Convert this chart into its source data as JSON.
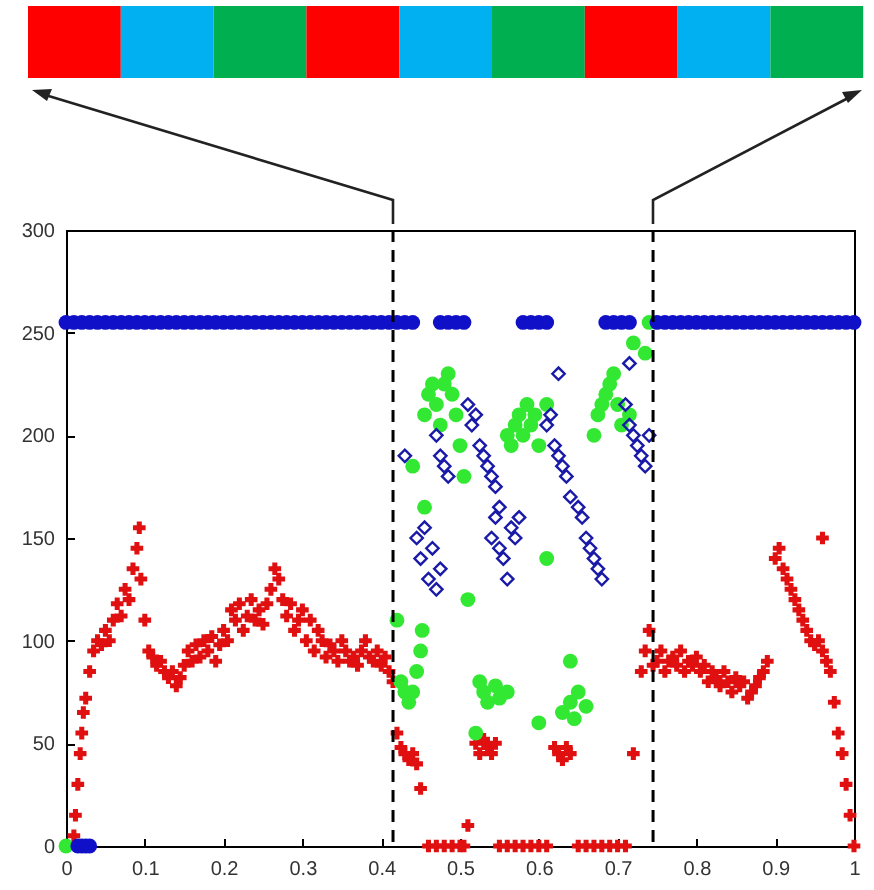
{
  "chart_data": {
    "type": "scatter",
    "xlim": [
      0,
      1
    ],
    "ylim": [
      0,
      300
    ],
    "xticks": [
      0,
      0.1,
      0.2,
      0.3,
      0.4,
      0.5,
      0.6,
      0.7,
      0.8,
      0.9,
      1
    ],
    "yticks": [
      0,
      50,
      100,
      150,
      200,
      250,
      300
    ],
    "grid": false,
    "ref_lines": [
      {
        "axis": "x",
        "value": 0.415,
        "color": "#000000",
        "line_style": "dashed"
      },
      {
        "axis": "x",
        "value": 0.745,
        "color": "#000000",
        "line_style": "dashed"
      }
    ],
    "series": [
      {
        "color": "#e01010",
        "marker": "cross",
        "x": [
          0.01,
          0.012,
          0.015,
          0.018,
          0.02,
          0.022,
          0.025,
          0.03,
          0.035,
          0.04,
          0.045,
          0.05,
          0.055,
          0.06,
          0.065,
          0.07,
          0.075,
          0.08,
          0.085,
          0.09,
          0.093,
          0.095,
          0.1,
          0.105,
          0.11,
          0.115,
          0.12,
          0.125,
          0.13,
          0.135,
          0.14,
          0.145,
          0.15,
          0.155,
          0.16,
          0.165,
          0.17,
          0.175,
          0.18,
          0.185,
          0.19,
          0.195,
          0.2,
          0.205,
          0.21,
          0.215,
          0.22,
          0.225,
          0.23,
          0.235,
          0.24,
          0.245,
          0.25,
          0.255,
          0.26,
          0.265,
          0.27,
          0.275,
          0.28,
          0.285,
          0.29,
          0.295,
          0.3,
          0.305,
          0.31,
          0.315,
          0.32,
          0.325,
          0.33,
          0.335,
          0.34,
          0.345,
          0.35,
          0.355,
          0.36,
          0.365,
          0.37,
          0.375,
          0.38,
          0.385,
          0.39,
          0.395,
          0.4,
          0.405,
          0.41,
          0.415,
          0.42,
          0.425,
          0.43,
          0.435,
          0.44,
          0.445,
          0.45,
          0.46,
          0.47,
          0.48,
          0.49,
          0.5,
          0.505,
          0.51,
          0.52,
          0.525,
          0.53,
          0.535,
          0.54,
          0.545,
          0.55,
          0.56,
          0.57,
          0.58,
          0.59,
          0.6,
          0.61,
          0.62,
          0.625,
          0.63,
          0.635,
          0.64,
          0.65,
          0.66,
          0.67,
          0.68,
          0.69,
          0.7,
          0.71,
          0.72,
          0.73,
          0.735,
          0.74,
          0.745,
          0.75,
          0.755,
          0.76,
          0.765,
          0.77,
          0.775,
          0.78,
          0.785,
          0.79,
          0.795,
          0.8,
          0.805,
          0.81,
          0.815,
          0.82,
          0.825,
          0.83,
          0.835,
          0.84,
          0.845,
          0.85,
          0.855,
          0.86,
          0.865,
          0.87,
          0.875,
          0.88,
          0.885,
          0.89,
          0.9,
          0.905,
          0.91,
          0.915,
          0.92,
          0.925,
          0.93,
          0.935,
          0.94,
          0.945,
          0.95,
          0.955,
          0.96,
          0.965,
          0.97,
          0.975,
          0.98,
          0.985,
          0.99,
          0.995,
          1,
          0.96
        ],
        "values": [
          5,
          15,
          30,
          45,
          55,
          65,
          72,
          85,
          95,
          100,
          98,
          105,
          100,
          110,
          118,
          112,
          125,
          120,
          135,
          145,
          155,
          130,
          110,
          95,
          92,
          88,
          90,
          85,
          82,
          85,
          78,
          82,
          88,
          95,
          90,
          98,
          92,
          100,
          95,
          102,
          90,
          98,
          105,
          100,
          115,
          110,
          118,
          105,
          112,
          120,
          110,
          115,
          108,
          118,
          125,
          135,
          130,
          120,
          112,
          118,
          105,
          110,
          115,
          100,
          110,
          95,
          105,
          100,
          92,
          98,
          95,
          90,
          100,
          95,
          90,
          92,
          88,
          95,
          100,
          92,
          90,
          95,
          88,
          92,
          85,
          80,
          55,
          48,
          45,
          42,
          45,
          40,
          28,
          0,
          0,
          0,
          0,
          0,
          0,
          10,
          50,
          45,
          52,
          48,
          45,
          50,
          0,
          0,
          0,
          0,
          0,
          0,
          0,
          48,
          45,
          42,
          48,
          45,
          0,
          0,
          0,
          0,
          0,
          0,
          0,
          45,
          85,
          95,
          105,
          88,
          90,
          95,
          85,
          90,
          92,
          88,
          95,
          85,
          90,
          88,
          92,
          85,
          88,
          80,
          85,
          82,
          78,
          85,
          80,
          75,
          82,
          78,
          80,
          72,
          75,
          78,
          82,
          85,
          90,
          140,
          145,
          135,
          130,
          125,
          120,
          115,
          110,
          105,
          100,
          98,
          100,
          95,
          90,
          85,
          70,
          55,
          45,
          30,
          15,
          0,
          150
        ]
      },
      {
        "color": "#33e833",
        "marker": "circle",
        "x": [
          0,
          0.42,
          0.425,
          0.43,
          0.435,
          0.44,
          0.445,
          0.45,
          0.452,
          0.455,
          0.44,
          0.455,
          0.46,
          0.465,
          0.47,
          0.475,
          0.48,
          0.485,
          0.49,
          0.495,
          0.5,
          0.505,
          0.525,
          0.53,
          0.535,
          0.545,
          0.55,
          0.56,
          0.51,
          0.52,
          0.56,
          0.565,
          0.57,
          0.575,
          0.58,
          0.585,
          0.59,
          0.595,
          0.6,
          0.61,
          0.6,
          0.61,
          0.63,
          0.64,
          0.645,
          0.65,
          0.66,
          0.64,
          0.67,
          0.675,
          0.68,
          0.685,
          0.69,
          0.695,
          0.7,
          0.705,
          0.715,
          0.72,
          0.735,
          0.74
        ],
        "values": [
          0,
          110,
          80,
          75,
          70,
          75,
          85,
          95,
          105,
          165,
          185,
          210,
          220,
          225,
          215,
          205,
          225,
          230,
          220,
          210,
          195,
          180,
          80,
          75,
          70,
          78,
          72,
          75,
          120,
          55,
          200,
          195,
          205,
          210,
          200,
          215,
          205,
          210,
          195,
          215,
          60,
          140,
          65,
          70,
          62,
          75,
          68,
          90,
          200,
          210,
          215,
          220,
          225,
          230,
          215,
          205,
          210,
          245,
          240,
          255
        ]
      },
      {
        "color": "#1010c8",
        "marker": "circle",
        "x": [
          0,
          0.01,
          0.02,
          0.03,
          0.04,
          0.05,
          0.06,
          0.07,
          0.08,
          0.09,
          0.1,
          0.11,
          0.12,
          0.13,
          0.14,
          0.15,
          0.16,
          0.17,
          0.18,
          0.19,
          0.2,
          0.21,
          0.22,
          0.23,
          0.24,
          0.25,
          0.26,
          0.27,
          0.28,
          0.29,
          0.3,
          0.31,
          0.32,
          0.33,
          0.34,
          0.35,
          0.36,
          0.37,
          0.38,
          0.39,
          0.4,
          0.41,
          0.42,
          0.43,
          0.44,
          0.475,
          0.485,
          0.495,
          0.505,
          0.58,
          0.59,
          0.6,
          0.61,
          0.685,
          0.695,
          0.705,
          0.715,
          0.75,
          0.76,
          0.77,
          0.78,
          0.79,
          0.8,
          0.81,
          0.82,
          0.83,
          0.84,
          0.85,
          0.86,
          0.87,
          0.88,
          0.89,
          0.9,
          0.91,
          0.92,
          0.93,
          0.94,
          0.95,
          0.96,
          0.97,
          0.98,
          0.99,
          1,
          0.015,
          0.02,
          0.025,
          0.03
        ],
        "values": [
          255,
          255,
          255,
          255,
          255,
          255,
          255,
          255,
          255,
          255,
          255,
          255,
          255,
          255,
          255,
          255,
          255,
          255,
          255,
          255,
          255,
          255,
          255,
          255,
          255,
          255,
          255,
          255,
          255,
          255,
          255,
          255,
          255,
          255,
          255,
          255,
          255,
          255,
          255,
          255,
          255,
          255,
          255,
          255,
          255,
          255,
          255,
          255,
          255,
          255,
          255,
          255,
          255,
          255,
          255,
          255,
          255,
          255,
          255,
          255,
          255,
          255,
          255,
          255,
          255,
          255,
          255,
          255,
          255,
          255,
          255,
          255,
          255,
          255,
          255,
          255,
          255,
          255,
          255,
          255,
          255,
          255,
          255,
          0,
          0,
          0,
          0
        ]
      },
      {
        "color": "#1a1aa8",
        "marker": "diamond",
        "x": [
          0.43,
          0.445,
          0.45,
          0.455,
          0.46,
          0.465,
          0.47,
          0.475,
          0.47,
          0.475,
          0.48,
          0.485,
          0.51,
          0.515,
          0.52,
          0.525,
          0.53,
          0.535,
          0.54,
          0.545,
          0.54,
          0.545,
          0.55,
          0.555,
          0.56,
          0.565,
          0.57,
          0.575,
          0.61,
          0.615,
          0.62,
          0.625,
          0.63,
          0.635,
          0.64,
          0.65,
          0.655,
          0.66,
          0.665,
          0.67,
          0.675,
          0.68,
          0.71,
          0.715,
          0.72,
          0.725,
          0.73,
          0.735,
          0.74,
          0.715,
          0.55,
          0.625
        ],
        "values": [
          190,
          150,
          140,
          155,
          130,
          145,
          125,
          135,
          200,
          190,
          185,
          180,
          215,
          205,
          210,
          195,
          190,
          185,
          180,
          175,
          150,
          160,
          145,
          140,
          130,
          155,
          150,
          160,
          205,
          210,
          195,
          190,
          185,
          180,
          170,
          165,
          160,
          150,
          145,
          140,
          135,
          130,
          215,
          205,
          200,
          195,
          190,
          185,
          200,
          235,
          165,
          230
        ]
      }
    ]
  }
}
